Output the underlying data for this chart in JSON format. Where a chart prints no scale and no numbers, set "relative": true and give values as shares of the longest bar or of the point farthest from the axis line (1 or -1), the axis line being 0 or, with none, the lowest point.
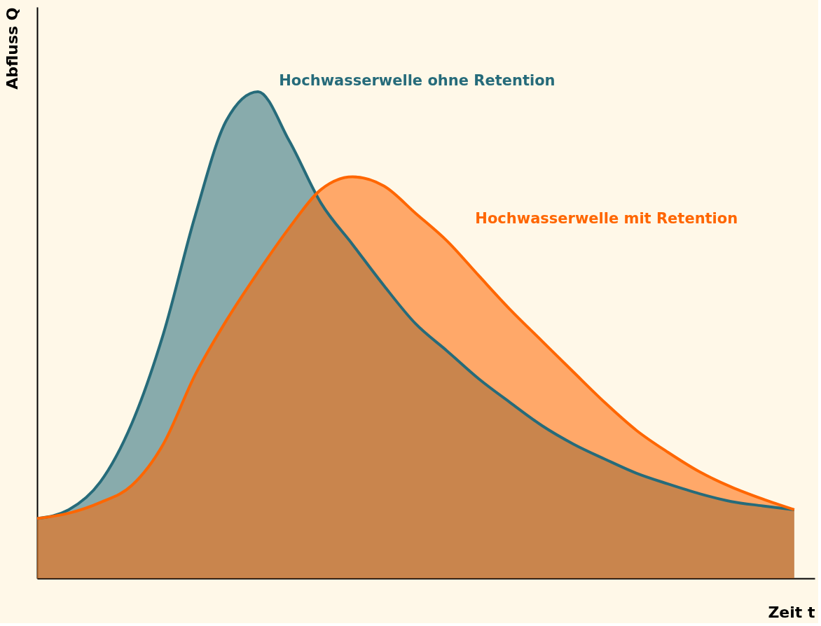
{
  "chart_data": {
    "type": "area",
    "relative": true,
    "xlabel": "Zeit t",
    "ylabel": "Abfluss Q",
    "legend": false,
    "grid": false,
    "categories": [
      null,
      null,
      null,
      null,
      null,
      null,
      null,
      null,
      null,
      null,
      null,
      null,
      null,
      null,
      null,
      null,
      null,
      null,
      null,
      null,
      null,
      null,
      null,
      null,
      null
    ],
    "series": [
      {
        "name": "Hochwasserwelle ohne Retention",
        "color": "#266b7a",
        "values": [
          0.123,
          0.141,
          0.198,
          0.318,
          0.502,
          0.743,
          0.941,
          1.0,
          0.898,
          0.771,
          0.686,
          0.601,
          0.523,
          0.467,
          0.41,
          0.361,
          0.314,
          0.276,
          0.245,
          0.216,
          0.194,
          0.174,
          0.158,
          0.149,
          0.141
        ]
      },
      {
        "name": "Hochwasserwelle mit Retention",
        "color": "#ff6600",
        "values": [
          0.123,
          0.134,
          0.156,
          0.191,
          0.276,
          0.417,
          0.53,
          0.629,
          0.721,
          0.799,
          0.825,
          0.806,
          0.75,
          0.693,
          0.622,
          0.552,
          0.488,
          0.424,
          0.361,
          0.304,
          0.259,
          0.219,
          0.188,
          0.163,
          0.141
        ]
      }
    ]
  }
}
